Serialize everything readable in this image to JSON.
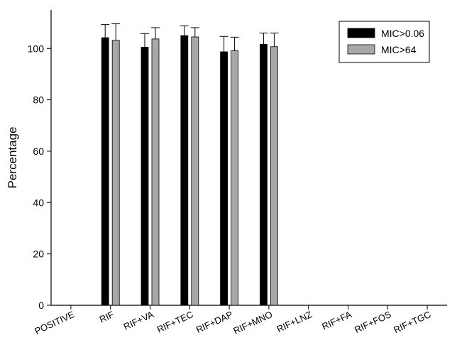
{
  "chart_data": {
    "type": "bar",
    "title": "",
    "xlabel": "",
    "ylabel": "Percentage",
    "ylim": [
      0,
      115
    ],
    "yticks": [
      0,
      20,
      40,
      60,
      80,
      100
    ],
    "grid": false,
    "legend_position": "top-right",
    "categories": [
      "POSITIVE",
      "RIF",
      "RIF+VA",
      "RIF+TEC",
      "RIF+DAP",
      "RIF+MNO",
      "RIF+LNZ",
      "RIF+FA",
      "RIF+FOS",
      "RIF+TGC"
    ],
    "series": [
      {
        "name": "MIC>0.06",
        "color": "#000000",
        "values": [
          null,
          104.2,
          100.5,
          105.0,
          98.7,
          101.6,
          null,
          null,
          null,
          null
        ],
        "errors": [
          null,
          5.1,
          5.3,
          3.8,
          6.0,
          4.4,
          null,
          null,
          null,
          null
        ]
      },
      {
        "name": "MIC>64",
        "color": "#a8a8a8",
        "values": [
          null,
          103.2,
          103.7,
          104.5,
          99.1,
          100.7,
          null,
          null,
          null,
          null
        ],
        "errors": [
          null,
          6.4,
          4.4,
          3.6,
          5.3,
          5.3,
          null,
          null,
          null,
          null
        ]
      }
    ]
  }
}
